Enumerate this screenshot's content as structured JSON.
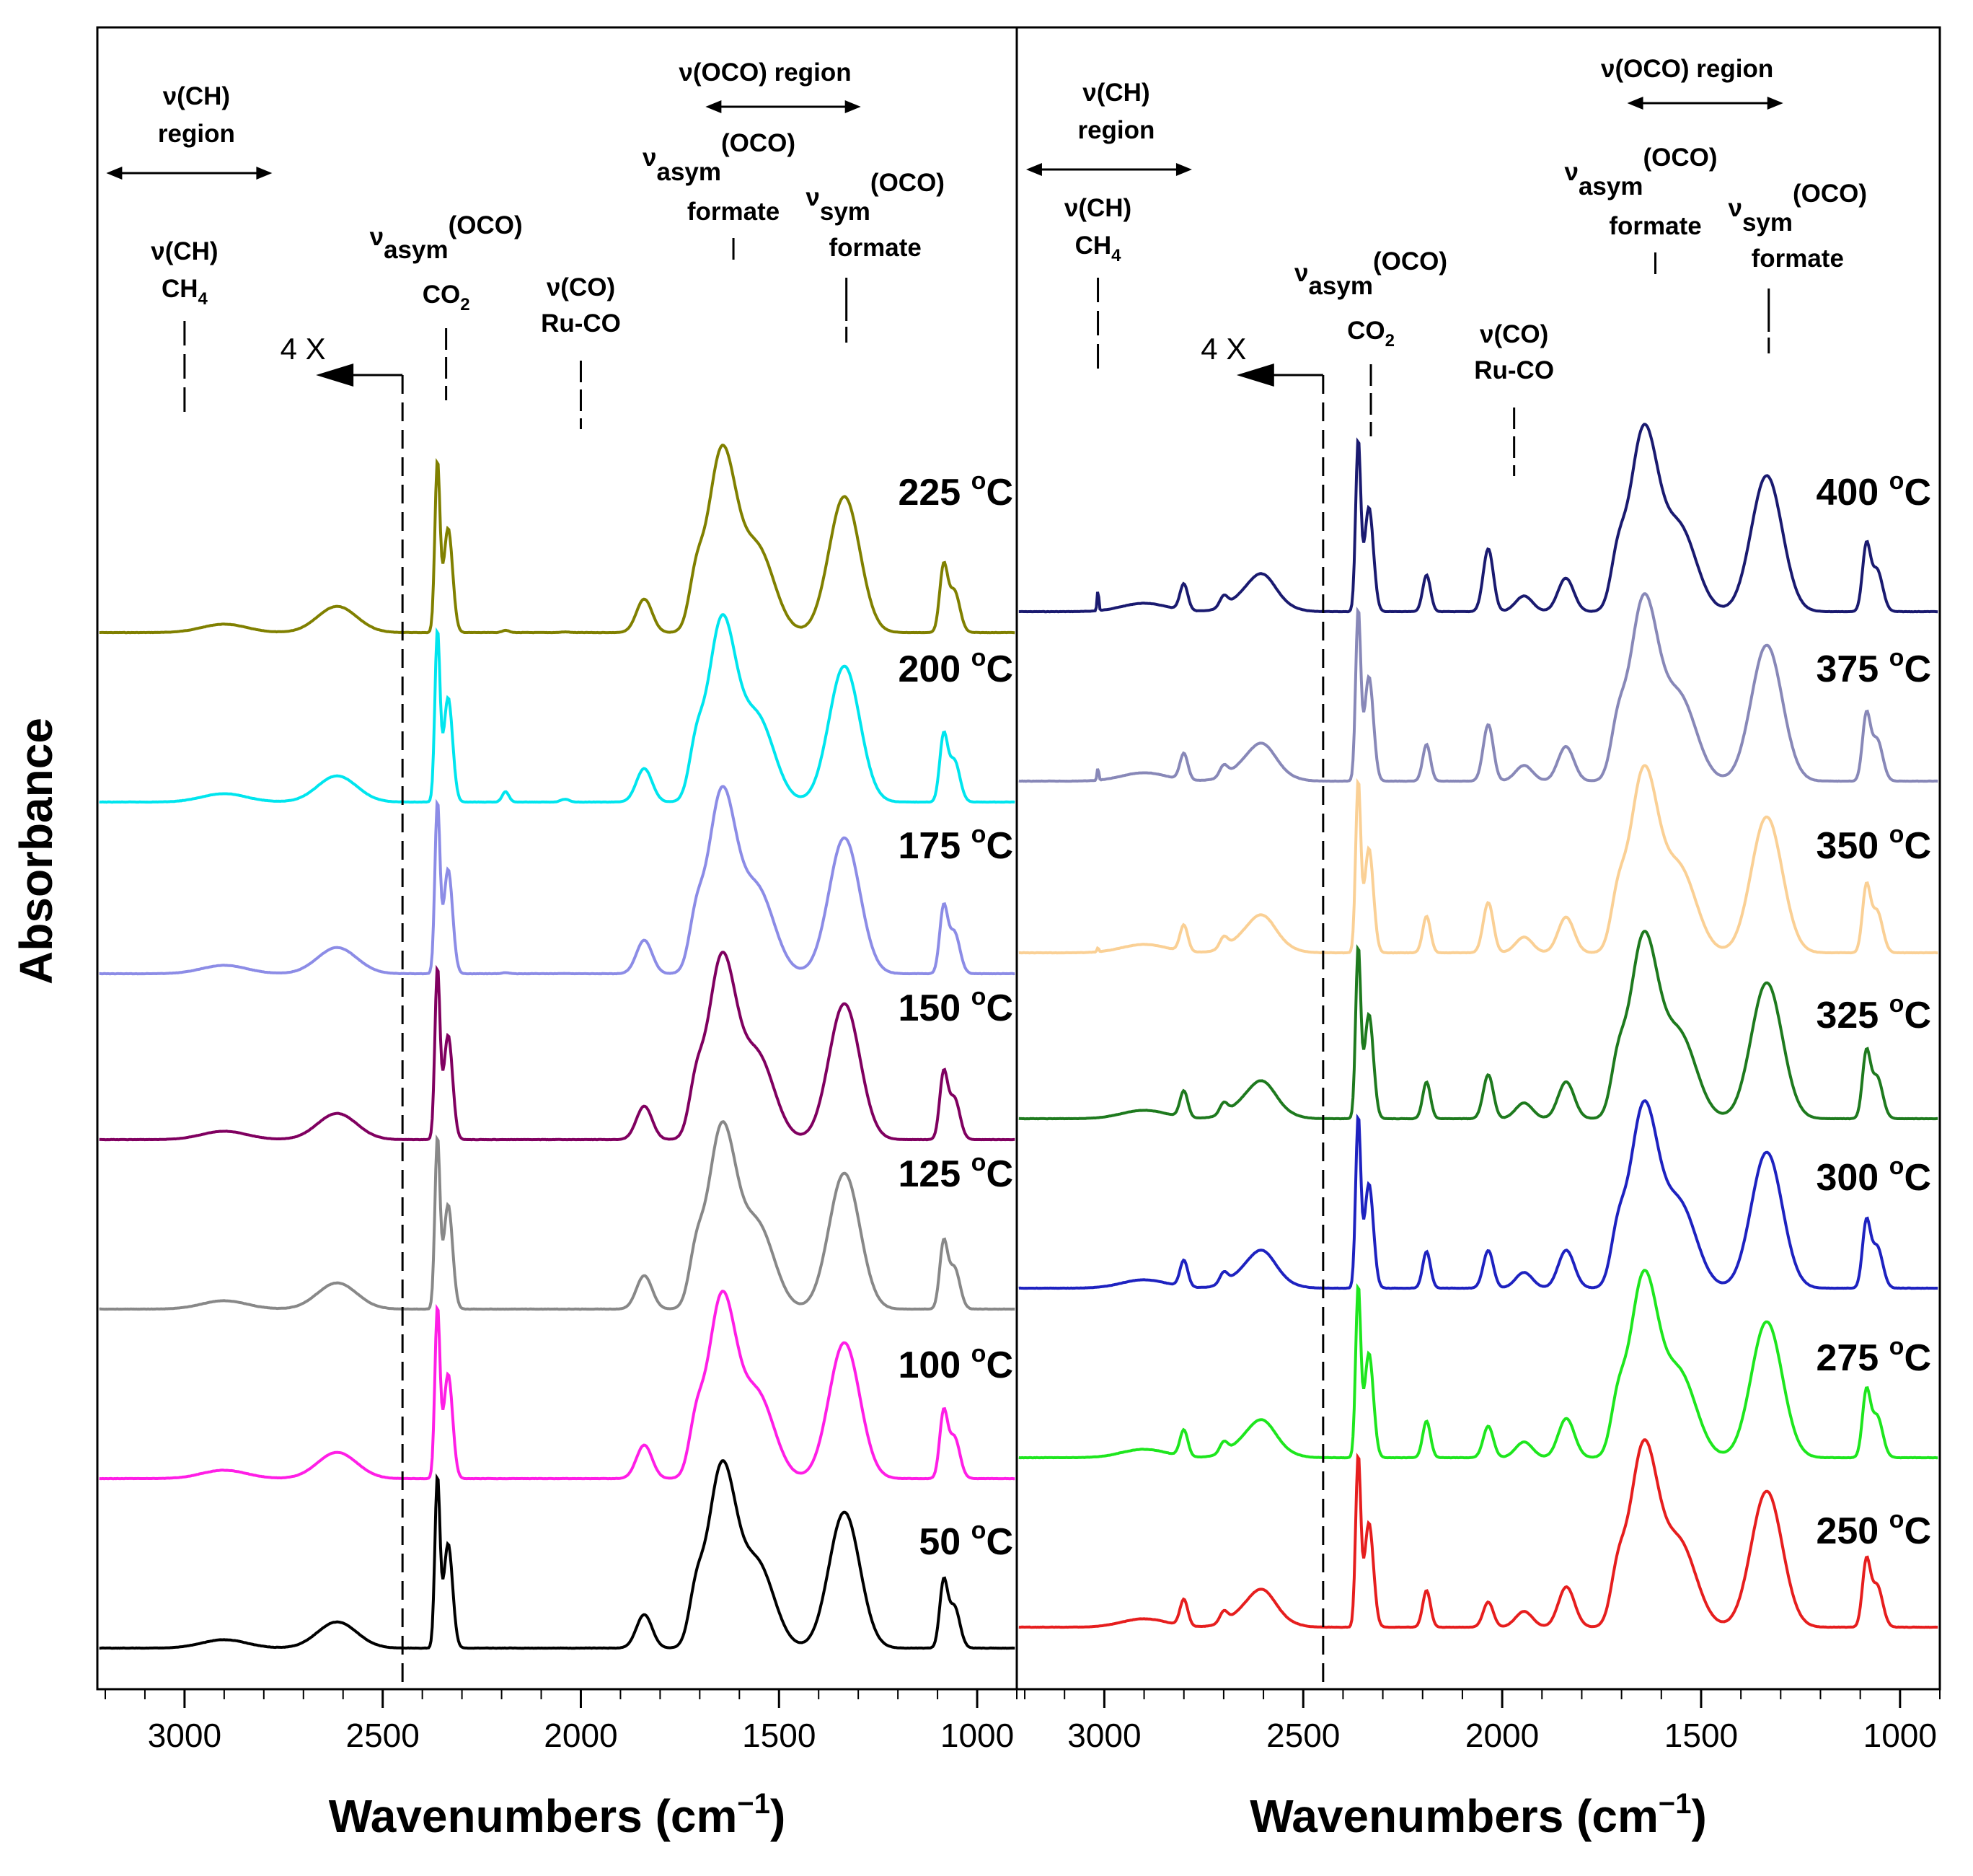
{
  "chart_data": {
    "type": "line",
    "ylabel": "Absorbance",
    "x_unit_main": "Wavenumbers (cm",
    "x_unit_sup": "−1",
    "x_unit_close": ")",
    "temp_unit_sup": "o",
    "temp_unit": "C",
    "panels": [
      {
        "name": "left",
        "xlim": [
          3220,
          900
        ],
        "ticks": [
          {
            "value": 3000,
            "label": "3000"
          },
          {
            "value": 2500,
            "label": "2500"
          },
          {
            "value": 2000,
            "label": "2000"
          },
          {
            "value": 1500,
            "label": "1500"
          },
          {
            "value": 1000,
            "label": "1000"
          }
        ],
        "annotations": {
          "ch_region_l1": "ν(CH)",
          "ch_region_l2": "region",
          "oco_region": "ν(OCO) region",
          "ch_ch4_l1": "ν(CH)",
          "ch_ch4_l2": "CH",
          "ch_ch4_sub": "4",
          "co2_nu": "ν",
          "co2_sub": "asym",
          "co2_sup": "(OCO)",
          "co2_l2": "CO",
          "co2_l2_sub": "2",
          "ruco_l1": "ν(CO)",
          "ruco_l2": "Ru-CO",
          "asym_nu": "ν",
          "asym_sub": "asym",
          "asym_sup": "(OCO)",
          "asym_l2": "formate",
          "sym_nu": "ν",
          "sym_sub": "sym",
          "sym_sup": "(OCO)",
          "sym_l2": "formate",
          "four_x": "4 X"
        },
        "series": [
          {
            "name": "225",
            "color": "#808000",
            "offset": 7,
            "feat": 0.1
          },
          {
            "name": "200",
            "color": "#00E5EE",
            "offset": 6,
            "feat": 0.45
          },
          {
            "name": "175",
            "color": "#8C8CE6",
            "offset": 5,
            "feat": 0.05
          },
          {
            "name": "150",
            "color": "#800060",
            "offset": 4,
            "feat": 0.0
          },
          {
            "name": "125",
            "color": "#888888",
            "offset": 3,
            "feat": 0.0
          },
          {
            "name": "100",
            "color": "#FF1EE6",
            "offset": 2,
            "feat": 0.0
          },
          {
            "name": "50",
            "color": "#000000",
            "offset": 1,
            "feat": 0.0
          }
        ]
      },
      {
        "name": "right",
        "xlim": [
          3220,
          900
        ],
        "ticks": [
          {
            "value": 3000,
            "label": "3000"
          },
          {
            "value": 2500,
            "label": "2500"
          },
          {
            "value": 2000,
            "label": "2000"
          },
          {
            "value": 1500,
            "label": "1500"
          },
          {
            "value": 1000,
            "label": "1000"
          }
        ],
        "annotations": {
          "ch_region_l1": "ν(CH)",
          "ch_region_l2": "region",
          "oco_region": "ν(OCO) region",
          "ch_ch4_l1": "ν(CH)",
          "ch_ch4_l2": "CH",
          "ch_ch4_sub": "4",
          "co2_nu": "ν",
          "co2_sub": "asym",
          "co2_sup": "(OCO)",
          "co2_l2": "CO",
          "co2_l2_sub": "2",
          "ruco_l1": "ν(CO)",
          "ruco_l2": "Ru-CO",
          "asym_nu": "ν",
          "asym_sub": "asym",
          "asym_sup": "(OCO)",
          "asym_l2": "formate",
          "sym_nu": "ν",
          "sym_sub": "sym",
          "sym_sup": "(OCO)",
          "sym_l2": "formate",
          "four_x": "4 X"
        },
        "series": [
          {
            "name": "400",
            "color": "#1A1A70",
            "offset": 7,
            "feat": 1.0
          },
          {
            "name": "375",
            "color": "#8888B8",
            "offset": 6,
            "feat": 0.9
          },
          {
            "name": "350",
            "color": "#FAD095",
            "offset": 5,
            "feat": 0.8
          },
          {
            "name": "325",
            "color": "#1E7A1E",
            "offset": 4,
            "feat": 0.7
          },
          {
            "name": "300",
            "color": "#1E22C0",
            "offset": 3,
            "feat": 0.6
          },
          {
            "name": "275",
            "color": "#1EE61E",
            "offset": 2,
            "feat": 0.5
          },
          {
            "name": "250",
            "color": "#E61E1E",
            "offset": 1,
            "feat": 0.4
          }
        ]
      }
    ]
  }
}
